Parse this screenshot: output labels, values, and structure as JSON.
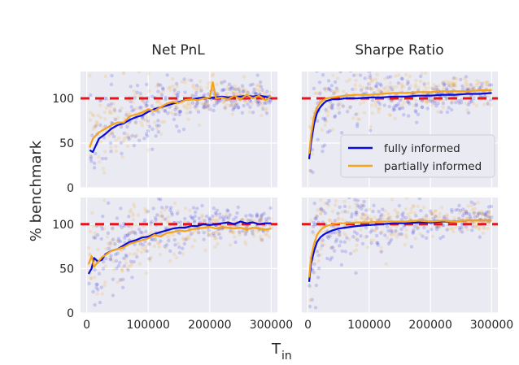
{
  "chart_data": {
    "type": "line",
    "ylabel": "% benchmark",
    "xlabel_main": "T",
    "xlabel_sub": "in",
    "xlim": [
      -10000,
      310000
    ],
    "ylim": [
      0,
      130
    ],
    "xticks": [
      0,
      100000,
      200000,
      300000
    ],
    "xtick_labels": [
      "0",
      "100000",
      "200000",
      "300000"
    ],
    "yticks": [
      0,
      50,
      100
    ],
    "ytick_labels": [
      "0",
      "50",
      "100"
    ],
    "benchmark_level": 100,
    "grid": true,
    "colors": {
      "fully_informed": "#0a0adc",
      "partially_informed": "#f5a31a",
      "benchmark": "#e8141a",
      "panel_bg": "#eaeaf2",
      "grid": "#ffffff"
    },
    "legend": {
      "location": "lower-right of top-right panel",
      "entries": [
        "fully informed",
        "partially informed"
      ]
    },
    "panels": [
      {
        "title": "Net PnL",
        "x": [
          5000,
          10000,
          20000,
          30000,
          40000,
          50000,
          60000,
          70000,
          80000,
          90000,
          100000,
          110000,
          120000,
          130000,
          140000,
          150000,
          160000,
          170000,
          180000,
          190000,
          200000,
          205000,
          210000,
          220000,
          230000,
          240000,
          250000,
          260000,
          270000,
          280000,
          290000,
          300000
        ],
        "series": [
          {
            "name": "fully informed",
            "values": [
              42,
              40,
              55,
              60,
              66,
              70,
              72,
              76,
              79,
              81,
              85,
              88,
              90,
              92,
              94,
              96,
              98,
              99,
              100,
              101,
              100,
              101,
              101,
              102,
              101,
              102,
              102,
              103,
              102,
              103,
              102,
              100
            ]
          },
          {
            "name": "partially informed",
            "values": [
              45,
              55,
              62,
              66,
              70,
              73,
              73,
              80,
              82,
              84,
              88,
              86,
              90,
              94,
              96,
              95,
              98,
              99,
              98,
              100,
              101,
              118,
              100,
              101,
              99,
              103,
              99,
              104,
              100,
              103,
              98,
              102
            ]
          }
        ]
      },
      {
        "title": "Sharpe Ratio",
        "x": [
          2000,
          5000,
          10000,
          15000,
          20000,
          25000,
          30000,
          40000,
          50000,
          60000,
          80000,
          100000,
          120000,
          140000,
          160000,
          180000,
          200000,
          220000,
          240000,
          260000,
          280000,
          300000
        ],
        "series": [
          {
            "name": "fully informed",
            "values": [
              32,
              50,
              72,
              84,
              90,
              94,
              97,
              99,
              99,
              100,
              100,
              101,
              101,
              102,
              102,
              103,
              103,
              104,
              104,
              105,
              105,
              106
            ]
          },
          {
            "name": "partially informed",
            "values": [
              38,
              58,
              80,
              90,
              95,
              98,
              100,
              101,
              102,
              103,
              104,
              104,
              105,
              106,
              106,
              107,
              107,
              108,
              108,
              108,
              109,
              109
            ]
          }
        ]
      },
      {
        "title": "",
        "x": [
          3000,
          8000,
          12000,
          18000,
          25000,
          30000,
          40000,
          50000,
          60000,
          70000,
          80000,
          90000,
          100000,
          110000,
          120000,
          130000,
          140000,
          150000,
          160000,
          170000,
          180000,
          190000,
          200000,
          210000,
          220000,
          230000,
          240000,
          250000,
          260000,
          270000,
          280000,
          290000,
          300000
        ],
        "series": [
          {
            "name": "fully informed",
            "values": [
              44,
              50,
              62,
              58,
              60,
              66,
              70,
              72,
              76,
              80,
              82,
              85,
              86,
              89,
              91,
              93,
              95,
              96,
              96,
              98,
              98,
              100,
              99,
              100,
              101,
              102,
              100,
              103,
              101,
              102,
              100,
              101,
              101
            ]
          },
          {
            "name": "partially informed",
            "values": [
              55,
              64,
              52,
              57,
              63,
              65,
              70,
              72,
              74,
              78,
              80,
              82,
              84,
              88,
              86,
              90,
              91,
              93,
              92,
              94,
              95,
              96,
              97,
              95,
              97,
              96,
              95,
              96,
              94,
              96,
              95,
              94,
              95
            ]
          }
        ]
      },
      {
        "title": "",
        "x": [
          2000,
          5000,
          10000,
          15000,
          20000,
          25000,
          30000,
          40000,
          50000,
          60000,
          80000,
          100000,
          120000,
          140000,
          160000,
          180000,
          200000,
          220000,
          240000,
          260000,
          280000,
          300000
        ],
        "series": [
          {
            "name": "fully informed",
            "values": [
              35,
              55,
              70,
              80,
              85,
              88,
              90,
              93,
              95,
              96,
              98,
              99,
              100,
              101,
              101,
              102,
              102,
              103,
              103,
              104,
              104,
              104
            ]
          },
          {
            "name": "partially informed",
            "values": [
              40,
              62,
              78,
              88,
              93,
              96,
              98,
              100,
              101,
              101,
              102,
              102,
              103,
              103,
              103,
              104,
              103,
              104,
              103,
              104,
              104,
              104
            ]
          }
        ]
      }
    ]
  }
}
